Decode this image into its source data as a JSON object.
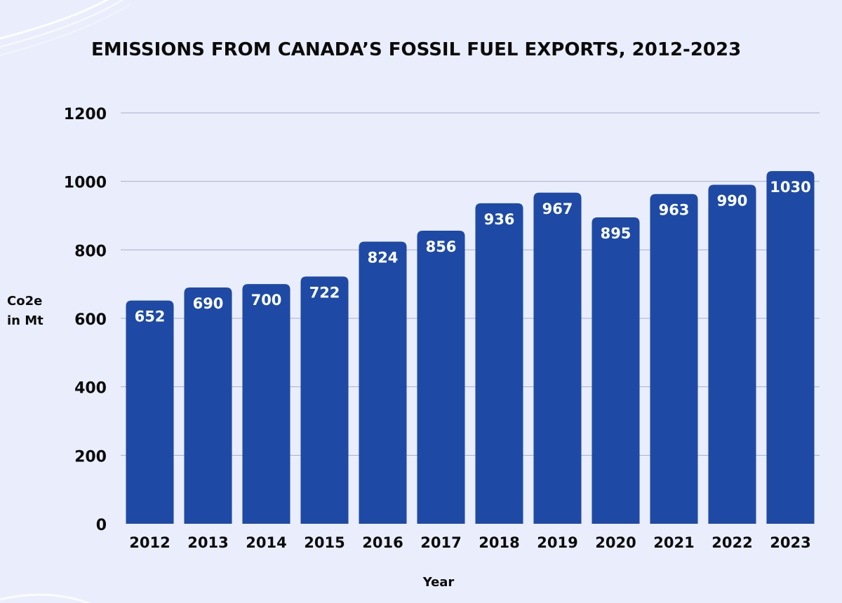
{
  "chart_data": {
    "type": "bar",
    "title": "EMISSIONS FROM CANADA’S FOSSIL FUEL EXPORTS, 2012-2023",
    "xlabel": "Year",
    "ylabel_lines": [
      "Co2e",
      "in Mt"
    ],
    "categories": [
      "2012",
      "2013",
      "2014",
      "2015",
      "2016",
      "2017",
      "2018",
      "2019",
      "2020",
      "2021",
      "2022",
      "2023"
    ],
    "values": [
      652,
      690,
      700,
      722,
      824,
      856,
      936,
      967,
      895,
      963,
      990,
      1030
    ],
    "ylim": [
      0,
      1200
    ],
    "yticks": [
      0,
      200,
      400,
      600,
      800,
      1000,
      1200
    ],
    "grid": true,
    "colors": {
      "bar": "#1e4aa6",
      "grid": "#a9adc4",
      "background": "#eaeefc",
      "text": "#0b0b0b",
      "bar_label": "#ffffff"
    }
  }
}
